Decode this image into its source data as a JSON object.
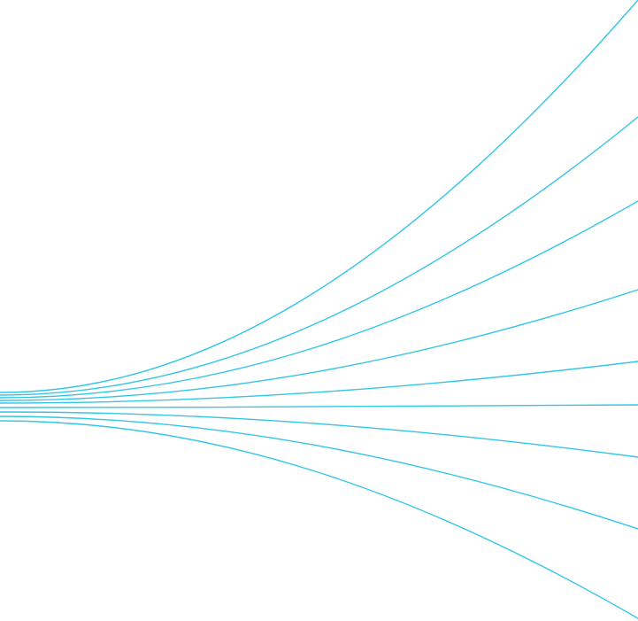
{
  "artwork": {
    "kind": "decorative-line-fan",
    "line_color": "#33c6e6",
    "background_color": "#ffffff",
    "line_count": 9
  }
}
